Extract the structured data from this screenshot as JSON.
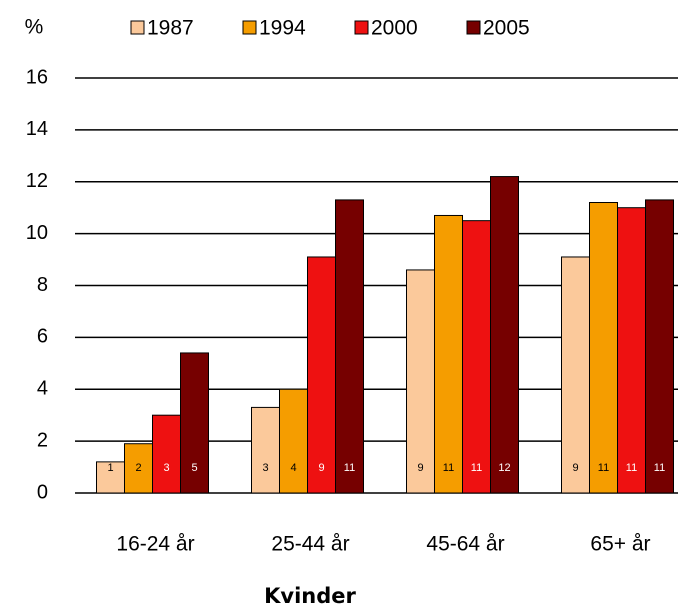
{
  "chart_data": {
    "type": "bar",
    "y_label": "%",
    "x_label": "Kvinder",
    "categories": [
      "16-24 år",
      "25-44 år",
      "45-64 år",
      "65+ år"
    ],
    "series": [
      {
        "name": "1987",
        "color": "#fbc99b",
        "values": [
          1.2,
          3.3,
          8.6,
          9.1
        ],
        "value_labels": [
          "1",
          "3",
          "9",
          "9"
        ]
      },
      {
        "name": "1994",
        "color": "#f59d00",
        "values": [
          1.9,
          4.0,
          10.7,
          11.2
        ],
        "value_labels": [
          "2",
          "4",
          "11",
          "11"
        ]
      },
      {
        "name": "2000",
        "color": "#ee1111",
        "values": [
          3.0,
          9.1,
          10.5,
          11.0
        ],
        "value_labels": [
          "3",
          "9",
          "11",
          "11"
        ]
      },
      {
        "name": "2005",
        "color": "#760000",
        "values": [
          5.4,
          11.3,
          12.2,
          11.3
        ],
        "value_labels": [
          "5",
          "11",
          "12",
          "11"
        ]
      }
    ],
    "ylim": [
      0,
      16
    ],
    "yticks": [
      0,
      2,
      4,
      6,
      8,
      10,
      12,
      14,
      16
    ],
    "grid": true
  }
}
